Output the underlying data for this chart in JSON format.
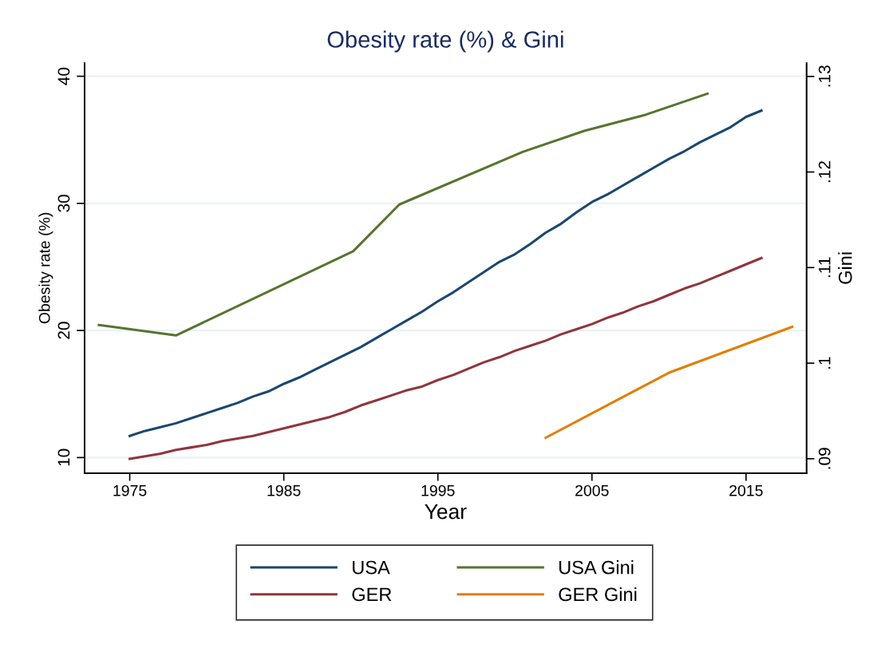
{
  "chart_data": {
    "type": "line",
    "title": "Obesity rate (%) & Gini",
    "xlabel": "Year",
    "ylabel": "Obesity rate (%)",
    "y2label": "Gini",
    "xlim": [
      1972.07,
      2018.93
    ],
    "xticks": [
      1975,
      1985,
      1995,
      2005,
      2015
    ],
    "ylim": [
      8.78,
      41.04
    ],
    "yticks": [
      10,
      20,
      30,
      40
    ],
    "y2lim": [
      0.0885,
      0.1314
    ],
    "y2ticks": [
      {
        "value": 0.09,
        "label": ".09"
      },
      {
        "value": 0.1,
        "label": ".1"
      },
      {
        "value": 0.11,
        "label": ".11"
      },
      {
        "value": 0.12,
        "label": ".12"
      },
      {
        "value": 0.13,
        "label": ".13"
      }
    ],
    "grid": "y",
    "legend": "bottom",
    "series": [
      {
        "name": "USA",
        "color": "#1a476f",
        "x": [
          1975,
          1976,
          1977,
          1978,
          1979,
          1980,
          1981,
          1982,
          1983,
          1984,
          1985,
          1986,
          1987,
          1988,
          1989,
          1990,
          1991,
          1992,
          1993,
          1994,
          1995,
          1996,
          1997,
          1998,
          1999,
          2000,
          2001,
          2002,
          2003,
          2004,
          2005,
          2006,
          2007,
          2008,
          2009,
          2010,
          2011,
          2012,
          2013,
          2014,
          2015,
          2016
        ],
        "values": [
          11.7,
          12.1,
          12.4,
          12.7,
          13.1,
          13.5,
          13.9,
          14.3,
          14.8,
          15.2,
          15.8,
          16.3,
          16.9,
          17.5,
          18.1,
          18.7,
          19.4,
          20.1,
          20.8,
          21.5,
          22.3,
          23.0,
          23.8,
          24.6,
          25.4,
          26.0,
          26.8,
          27.7,
          28.4,
          29.3,
          30.1,
          30.7,
          31.4,
          32.1,
          32.8,
          33.5,
          34.1,
          34.8,
          35.4,
          36.0,
          36.8,
          37.3
        ]
      },
      {
        "name": "GER",
        "color": "#90353b",
        "x": [
          1975,
          1976,
          1977,
          1978,
          1979,
          1980,
          1981,
          1982,
          1983,
          1984,
          1985,
          1986,
          1987,
          1988,
          1989,
          1990,
          1991,
          1992,
          1993,
          1994,
          1995,
          1996,
          1997,
          1998,
          1999,
          2000,
          2001,
          2002,
          2003,
          2004,
          2005,
          2006,
          2007,
          2008,
          2009,
          2010,
          2011,
          2012,
          2013,
          2014,
          2015,
          2016
        ],
        "values": [
          9.9,
          10.1,
          10.3,
          10.6,
          10.8,
          11.0,
          11.3,
          11.5,
          11.7,
          12.0,
          12.3,
          12.6,
          12.9,
          13.2,
          13.6,
          14.1,
          14.5,
          14.9,
          15.3,
          15.6,
          16.1,
          16.5,
          17.0,
          17.5,
          17.9,
          18.4,
          18.8,
          19.2,
          19.7,
          20.1,
          20.5,
          21.0,
          21.4,
          21.9,
          22.3,
          22.8,
          23.3,
          23.7,
          24.2,
          24.7,
          25.2,
          25.7
        ]
      },
      {
        "name": "USA Gini",
        "color": "#55752f",
        "axis": "y2",
        "x": [
          1973,
          1978,
          1989.5,
          1992.5,
          2000.5,
          2004.5,
          2008.5,
          2012.5
        ],
        "values": [
          0.104,
          0.1029,
          0.1117,
          0.1166,
          0.1221,
          0.1243,
          0.126,
          0.1282
        ]
      },
      {
        "name": "GER Gini",
        "color": "#e37e00",
        "axis": "y2",
        "x": [
          2002,
          2010,
          2018
        ],
        "values": [
          0.0922,
          0.099,
          0.1038
        ]
      }
    ]
  }
}
